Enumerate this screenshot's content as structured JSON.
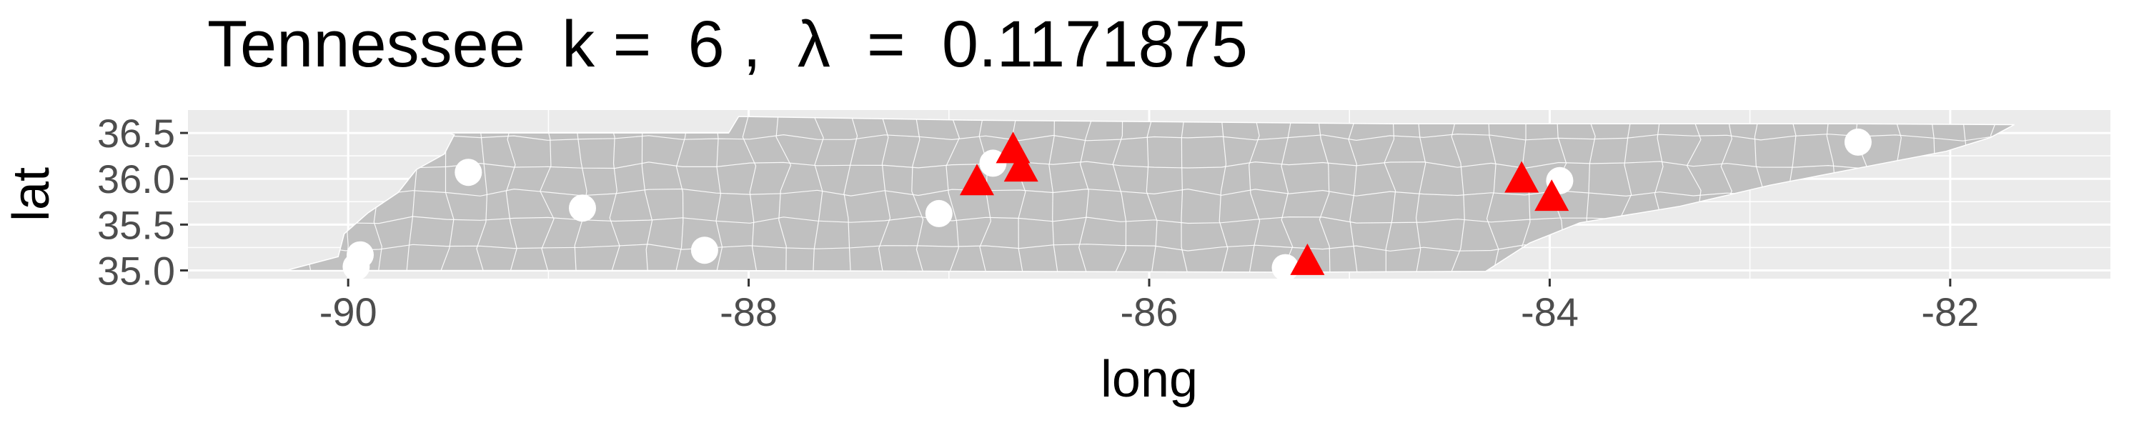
{
  "title": "Tennessee  k =  6 ,  λ  =  0.1171875",
  "x_axis": {
    "label": "long",
    "range": [
      -90.8,
      -81.2
    ],
    "ticks": [
      -90,
      -88,
      -86,
      -84,
      -82
    ],
    "tick_labels": [
      "-90",
      "-88",
      "-86",
      "-84",
      "-82"
    ],
    "minor": [
      -89,
      -87,
      -85,
      -83,
      -81
    ]
  },
  "y_axis": {
    "label": "lat",
    "range": [
      34.91,
      36.75
    ],
    "ticks": [
      35.0,
      35.5,
      36.0,
      36.5
    ],
    "tick_labels": [
      "35.0",
      "35.5",
      "36.0",
      "36.5"
    ],
    "minor": [
      35.25,
      35.75,
      36.25
    ]
  },
  "colors": {
    "panel": "#ebebeb",
    "grid": "#ffffff",
    "region_fill": "#c0c0c0",
    "region_border": "#ffffff",
    "triangle": "#ff0000",
    "circle": "#ffffff",
    "text": "#000000",
    "tick_text": "#4d4d4d"
  },
  "region_outline": [
    [
      -90.31,
      35.0
    ],
    [
      -90.05,
      35.15
    ],
    [
      -90.02,
      35.4
    ],
    [
      -89.9,
      35.63
    ],
    [
      -89.75,
      35.85
    ],
    [
      -89.66,
      36.1
    ],
    [
      -89.52,
      36.27
    ],
    [
      -89.47,
      36.48
    ],
    [
      -89.5,
      36.5
    ],
    [
      -88.1,
      36.5
    ],
    [
      -88.05,
      36.68
    ],
    [
      -86.9,
      36.64
    ],
    [
      -85.8,
      36.62
    ],
    [
      -84.8,
      36.6
    ],
    [
      -83.68,
      36.6
    ],
    [
      -82.5,
      36.6
    ],
    [
      -81.68,
      36.59
    ],
    [
      -81.8,
      36.45
    ],
    [
      -82.02,
      36.3
    ],
    [
      -82.45,
      36.12
    ],
    [
      -82.9,
      35.93
    ],
    [
      -83.35,
      35.7
    ],
    [
      -83.85,
      35.52
    ],
    [
      -84.1,
      35.3
    ],
    [
      -84.32,
      34.99
    ],
    [
      -85.3,
      34.98
    ],
    [
      -86.8,
      34.99
    ],
    [
      -88.2,
      35.0
    ],
    [
      -90.31,
      35.0
    ]
  ],
  "chart_data": {
    "type": "scatter",
    "title": "Tennessee  k =  6 ,  λ  =  0.1171875",
    "xlabel": "long",
    "ylabel": "lat",
    "xlim": [
      -90.8,
      -81.2
    ],
    "ylim": [
      34.91,
      36.75
    ],
    "grid": true,
    "legend": "none",
    "series": [
      {
        "marker": "triangle",
        "color": "#ff0000",
        "points": [
          {
            "x": -86.68,
            "y": 36.3
          },
          {
            "x": -86.64,
            "y": 36.1
          },
          {
            "x": -86.86,
            "y": 35.95
          },
          {
            "x": -84.14,
            "y": 35.98
          },
          {
            "x": -83.99,
            "y": 35.78
          },
          {
            "x": -85.21,
            "y": 35.08
          }
        ]
      },
      {
        "marker": "circle",
        "color": "#ffffff",
        "points": [
          {
            "x": -89.4,
            "y": 36.07
          },
          {
            "x": -88.83,
            "y": 35.68
          },
          {
            "x": -88.22,
            "y": 35.22
          },
          {
            "x": -89.94,
            "y": 35.17
          },
          {
            "x": -89.96,
            "y": 35.04
          },
          {
            "x": -87.05,
            "y": 35.62
          },
          {
            "x": -86.78,
            "y": 36.17
          },
          {
            "x": -85.32,
            "y": 35.03
          },
          {
            "x": -83.95,
            "y": 35.98
          },
          {
            "x": -82.46,
            "y": 36.4
          }
        ]
      }
    ]
  }
}
